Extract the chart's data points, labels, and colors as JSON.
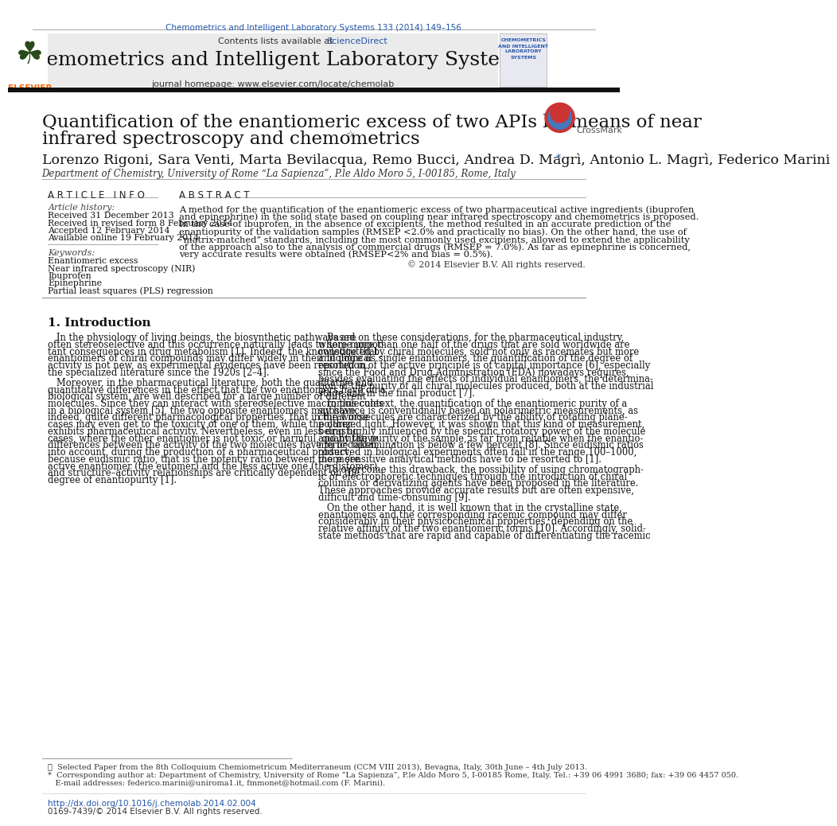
{
  "journal_ref": "Chemometrics and Intelligent Laboratory Systems 133 (2014) 149–156",
  "journal_name": "Chemometrics and Intelligent Laboratory Systems",
  "journal_homepage": "journal homepage: www.elsevier.com/locate/chemolab",
  "contents_text": "Contents lists available at ScienceDirect",
  "title_line1": "Quantification of the enantiomeric excess of two APIs by means of near",
  "title_line2": "infrared spectroscopy and chemometrics",
  "title_star": "☆",
  "authors": "Lorenzo Rigoni, Sara Venti, Marta Bevilacqua, Remo Bucci, Andrea D. Magrì, Antonio L. Magrì, Federico Marini",
  "authors_star": "*",
  "affiliation": "Department of Chemistry, University of Rome “La Sapienza”, P.le Aldo Moro 5, I-00185, Rome, Italy",
  "article_info_header": "A R T I C L E   I N F O",
  "article_history_header": "Article history:",
  "received": "Received 31 December 2013",
  "revised": "Received in revised form 8 February 2014",
  "accepted": "Accepted 12 February 2014",
  "available": "Available online 19 February 2014",
  "keywords_header": "Keywords:",
  "keywords": [
    "Enantiomeric excess",
    "Near infrared spectroscopy (NIR)",
    "Ibuprofen",
    "Epinephrine",
    "Partial least squares (PLS) regression"
  ],
  "abstract_header": "A B S T R A C T",
  "copyright": "© 2014 Elsevier B.V. All rights reserved.",
  "section1_header": "1. Introduction",
  "footnote1": "☆  Selected Paper from the 8th Colloquium Chemiometricum Mediterraneum (CCM VIII 2013), Bevagna, Italy, 30th June – 4th July 2013.",
  "footnote2": "*  Corresponding author at: Department of Chemistry, University of Rome “La Sapienza”, P.le Aldo Moro 5, I-00185 Rome, Italy. Tel.: +39 06 4991 3680; fax: +39 06 4457 050.",
  "footnote3": "   E-mail addresses: federico.marini@uniroma1.it, fmmonet@hotmail.com (F. Marini).",
  "doi_text": "http://dx.doi.org/10.1016/j.chemolab.2014.02.004",
  "issn_text": "0169-7439/© 2014 Elsevier B.V. All rights reserved.",
  "bg_color": "#ffffff",
  "blue_color": "#2255aa",
  "orange_color": "#ff6600",
  "dark_line": "#1a1a1a",
  "abstract_lines": [
    "A method for the quantification of the enantiomeric excess of two pharmaceutical active ingredients (ibuprofen",
    "and epinephrine) in the solid state based on coupling near infrared spectroscopy and chemometrics is proposed.",
    "In the case of ibuprofen, in the absence of excipients, the method resulted in an accurate prediction of the",
    "enantiopurity of the validation samples (RMSEP <2.0% and practically no bias). On the other hand, the use of",
    "“matrix-matched” standards, including the most commonly used excipients, allowed to extend the applicability",
    "of the approach also to the analysis of commercial drugs (RMSEP = 7.0%). As far as epinephrine is concerned,",
    "very accurate results were obtained (RMSEP<2% and bias = 0.5%)."
  ],
  "intro_col1_p1_lines": [
    "   In the physiology of living beings, the biosynthetic pathways are",
    "often stereoselective and this occurrence naturally leads to some impor-",
    "tant consequences in drug metabolism [1]. Indeed, the knowledge that",
    "enantiomers of chiral compounds may differ widely in their biological",
    "activity is not new, as experimental evidences have been reported in",
    "the specialized literature since the 1920s [2–4]."
  ],
  "intro_col1_p2_lines": [
    "   Moreover, in the pharmaceutical literature, both the qualitative and",
    "quantitative differences in the effect that the two enantiomers have on a",
    "biological system, are well described for a large number of different",
    "molecules. Since they can interact with stereoselective macromolecules",
    "in a biological system [5], the two opposite enantiomers may have,",
    "indeed, quite different pharmacological properties, that in the worse",
    "cases may even get to the toxicity of one of them, while the other",
    "exhibits pharmaceutical activity. Nevertheless, even in less drastic",
    "cases, where the other enantiomer is not toxic or harmful, quantitative",
    "differences between the activity of the two molecules have to be taken",
    "into account, during the production of a pharmaceutical product,",
    "because eudismic ratio, that is the potency ratio between the more",
    "active enantiomer (the eutomer) and the less active one (the distomer),",
    "and structure–activity relationships are critically dependent on the",
    "degree of enantiopurity [1]."
  ],
  "intro_col2_p1_lines": [
    "   Based on these considerations, for the pharmaceutical industry,",
    "where more than one half of the drugs that are sold worldwide are",
    "constituted by chiral molecules, sold not only as racemates but more",
    "and more as single enantiomers, the quantification of the degree of",
    "resolution of the active principle is of capital importance [6], especially",
    "since the Food and Drug Administration (FDA) nowadays requires,",
    "besides evaluating the effects of individual enantiomers, the determina-",
    "tion of the purity of all chiral molecules produced, both at the industrial",
    "stage and in the final product [7]."
  ],
  "intro_col2_p2_lines": [
    "   In this context, the quantification of the enantiomeric purity of a",
    "substance is conventionally based on polarimetric measurements, as",
    "chiral molecules are characterized by the ability of rotating plane-",
    "polarized light. However, it was shown that this kind of measurement,",
    "being highly influenced by the specific rotatory power of the molecule",
    "and by the purity of the sample, is far from reliable when the enantio-",
    "meric contamination is below a few percent [8]. Since eudismic ratios",
    "observed in biological experiments often fall in the range 100–1000,",
    "more sensitive analytical methods have to be resorted to [1]."
  ],
  "intro_col2_p3_lines": [
    "   To overcome this drawback, the possibility of using chromatograph-",
    "ic or electrophoretic techniques through the introduction of chiral",
    "columns or derivatizing agents have been proposed in the literature.",
    "These approaches provide accurate results but are often expensive,",
    "difficult and time-consuming [9]."
  ],
  "intro_col2_p4_lines": [
    "   On the other hand, it is well known that in the crystalline state,",
    "enantiomers and the corresponding racemic compound may differ",
    "considerably in their physicochemical properties, depending on the",
    "relative affinity of the two enantiomeric forms [10]. Accordingly, solid-",
    "state methods that are rapid and capable of differentiating the racemic"
  ]
}
